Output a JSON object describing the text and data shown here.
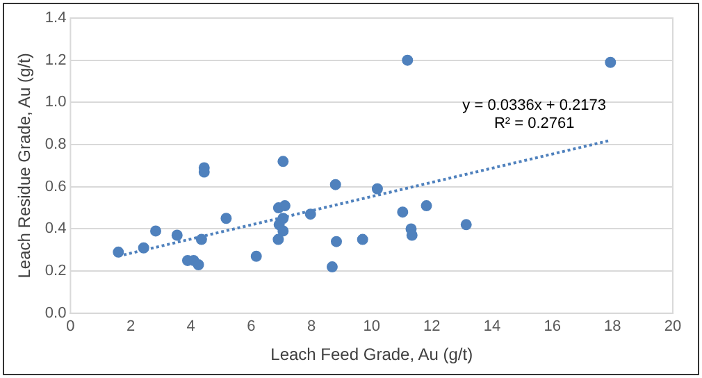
{
  "chart_data": {
    "type": "scatter",
    "xlabel": "Leach Feed Grade, Au (g/t)",
    "ylabel": "Leach Residue Grade, Au (g/t)",
    "xlim": [
      0,
      20
    ],
    "xticks": [
      0,
      2,
      4,
      6,
      8,
      10,
      12,
      14,
      16,
      18,
      20
    ],
    "ylim": [
      0,
      1.4
    ],
    "yticks": [
      {
        "value": 0,
        "label": "0.0"
      },
      {
        "value": 0.2,
        "label": "0.2"
      },
      {
        "value": 0.4,
        "label": "0.4"
      },
      {
        "value": 0.6,
        "label": "0.6"
      },
      {
        "value": 0.8,
        "label": "0.8"
      },
      {
        "value": 1,
        "label": "1.0"
      },
      {
        "value": 1.2,
        "label": "1.2"
      },
      {
        "value": 1.4,
        "label": "1.4"
      }
    ],
    "grid": "y",
    "legend": false,
    "marker": "circle",
    "series": [
      {
        "color": "#4f81bd",
        "x": [
          1.59,
          2.43,
          2.83,
          3.54,
          3.89,
          4.09,
          4.25,
          4.35,
          4.44,
          4.44,
          5.17,
          6.17,
          6.9,
          6.93,
          6.91,
          7.06,
          7.06,
          7.06,
          7.12,
          7.97,
          8.69,
          8.8,
          8.83,
          9.7,
          10.19,
          11.03,
          11.19,
          11.31,
          11.34,
          11.82,
          13.14,
          17.93
        ],
        "values": [
          0.29,
          0.31,
          0.39,
          0.37,
          0.25,
          0.25,
          0.23,
          0.35,
          0.69,
          0.67,
          0.45,
          0.27,
          0.35,
          0.42,
          0.5,
          0.72,
          0.45,
          0.39,
          0.51,
          0.47,
          0.22,
          0.61,
          0.34,
          0.35,
          0.59,
          0.48,
          1.2,
          0.4,
          0.37,
          0.51,
          0.42,
          1.19
        ]
      },
      {
        "type": "line",
        "color": "#4f81bd",
        "line_style": "dotted",
        "marker": "none",
        "x": [
          1.59,
          17.93
        ],
        "values": [
          0.271,
          0.82
        ]
      }
    ],
    "annotations": [
      "y = 0.0336x + 0.2173",
      "R² = 0.2761"
    ]
  }
}
